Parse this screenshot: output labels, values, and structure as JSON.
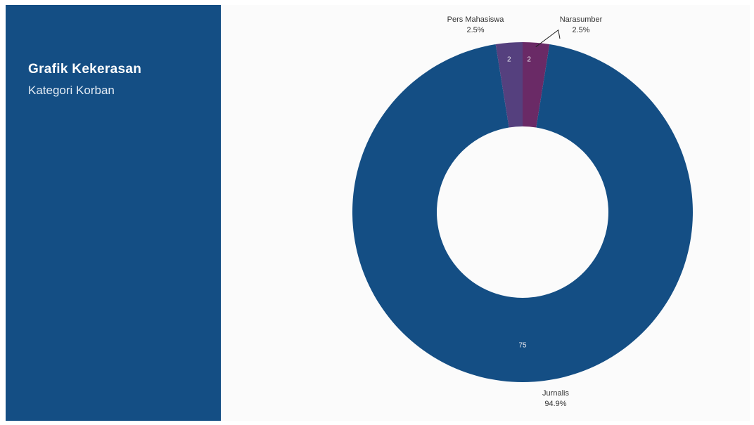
{
  "panel": {
    "title": "Grafik Kekerasan",
    "subtitle": "Kategori Korban",
    "color": "#144e84"
  },
  "chart_data": {
    "type": "pie",
    "donut": true,
    "categories": [
      "Narasumber",
      "Jurnalis",
      "Pers Mahasiswa"
    ],
    "values": [
      2,
      75,
      2
    ],
    "value_labels": [
      "2",
      "75",
      "2"
    ],
    "percent_labels": [
      "2.5%",
      "94.9%",
      "2.5%"
    ],
    "colors": [
      "#6a2a66",
      "#144e84",
      "#55407e"
    ],
    "legend": "none"
  }
}
